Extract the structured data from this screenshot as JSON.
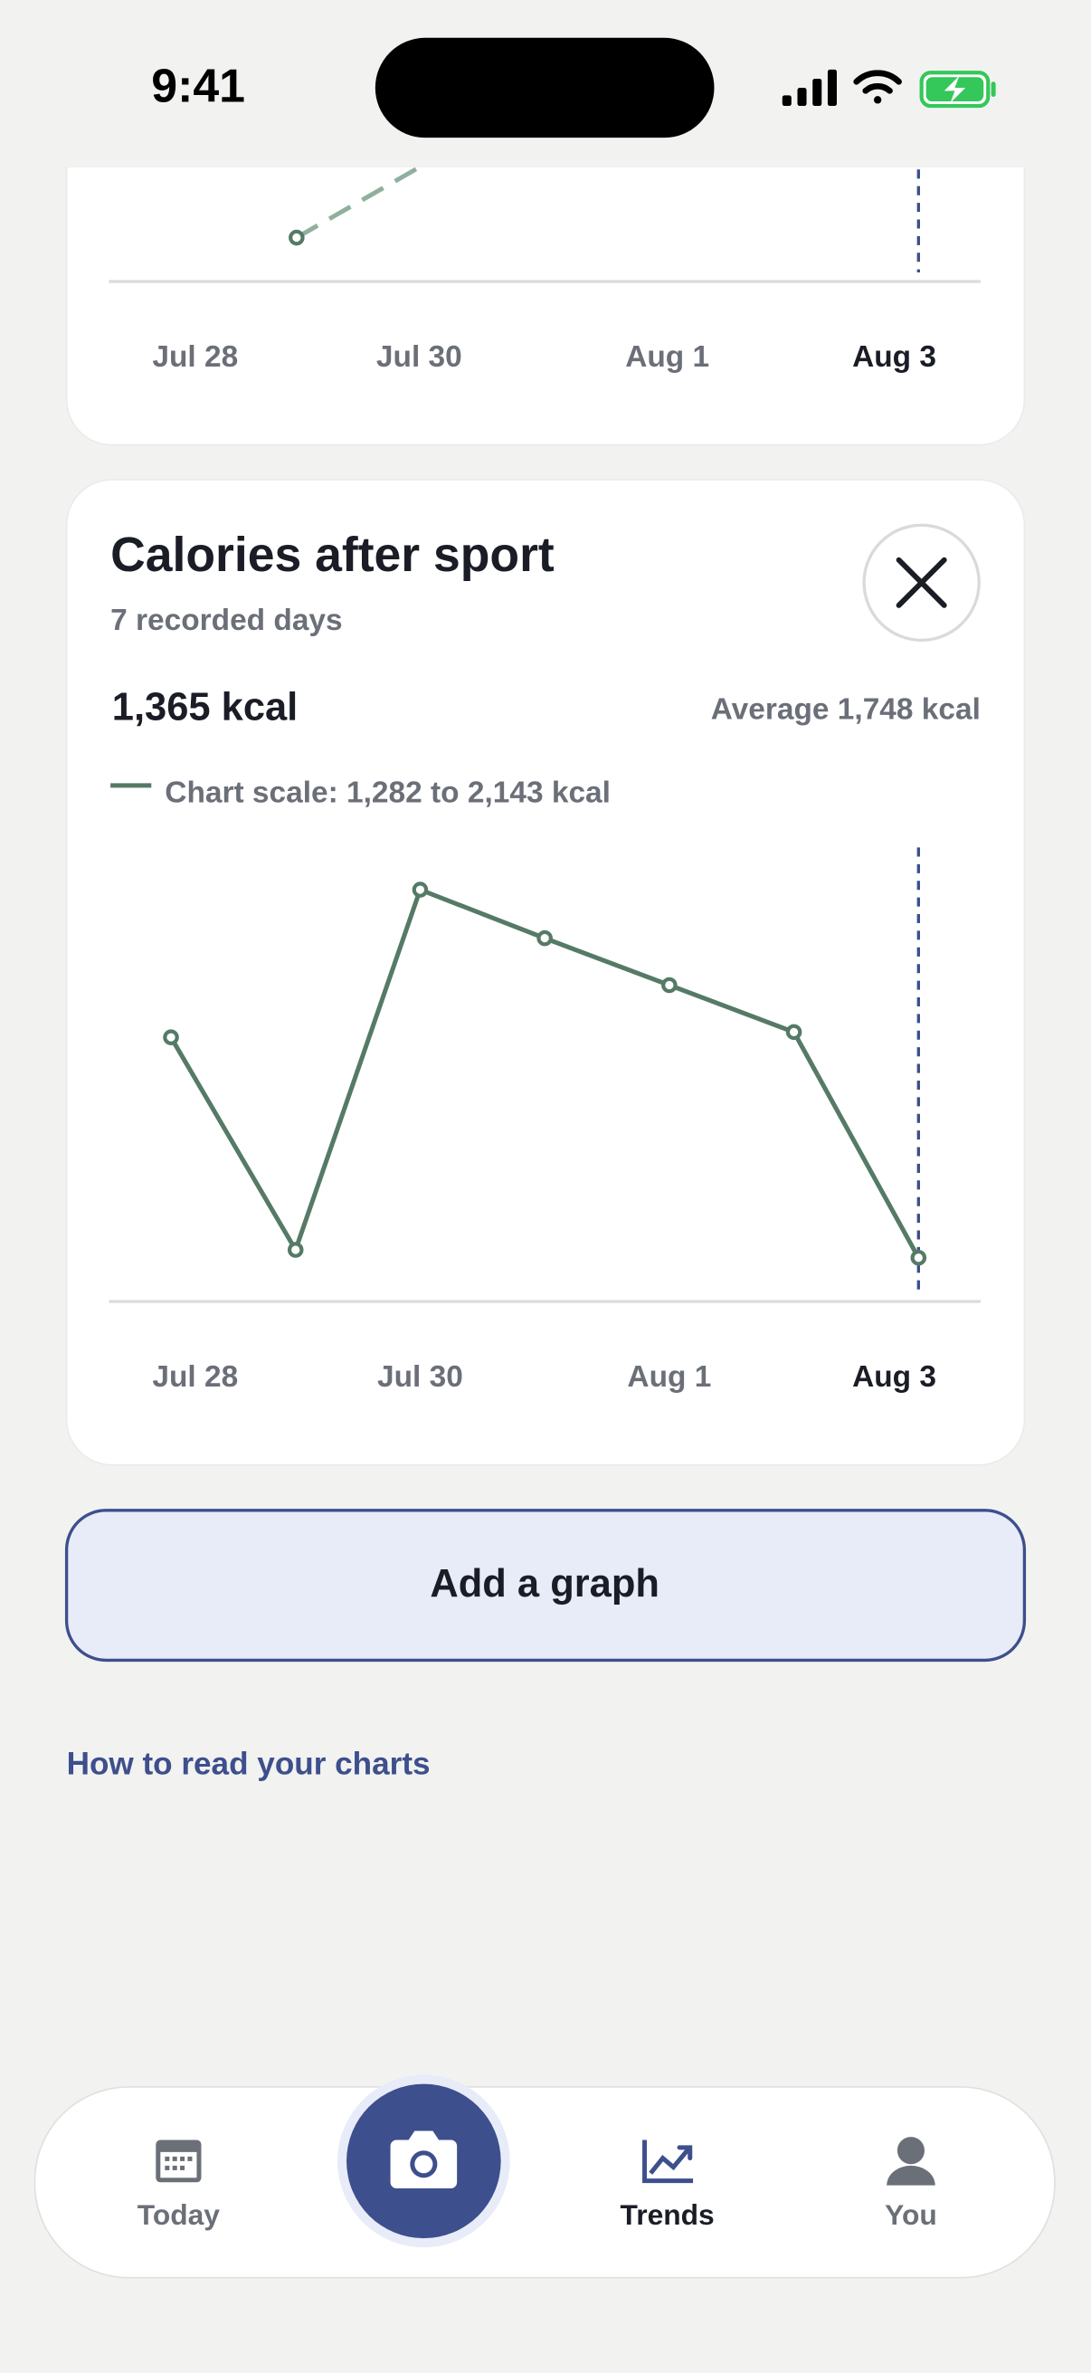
{
  "status_bar": {
    "time": "9:41"
  },
  "previous_card": {
    "x_labels": [
      "Jul 28",
      "Jul 30",
      "Aug 1",
      "Aug 3"
    ]
  },
  "chart_data": {
    "type": "line",
    "title": "Calories after sport",
    "subtitle": "7 recorded days",
    "categories": [
      "Jul 28",
      null,
      "Jul 30",
      null,
      "Aug 1",
      null,
      "Aug 3"
    ],
    "series": [
      {
        "name": "Chart scale: 1,282 to 2,143 kcal",
        "color": "#557a66",
        "values": [
          1783,
          1380,
          2063,
          1971,
          1882,
          1793,
          1365
        ]
      }
    ],
    "ylim": [
      1282,
      2143
    ],
    "highlight_index": 6
  },
  "card": {
    "current": "1,365 kcal",
    "average": "Average 1,748 kcal"
  },
  "add_button": "Add a graph",
  "help_link": "How to read your charts",
  "tab_bar": {
    "tabs": [
      "Today",
      "Trends",
      "You"
    ],
    "active_tab": 1
  }
}
